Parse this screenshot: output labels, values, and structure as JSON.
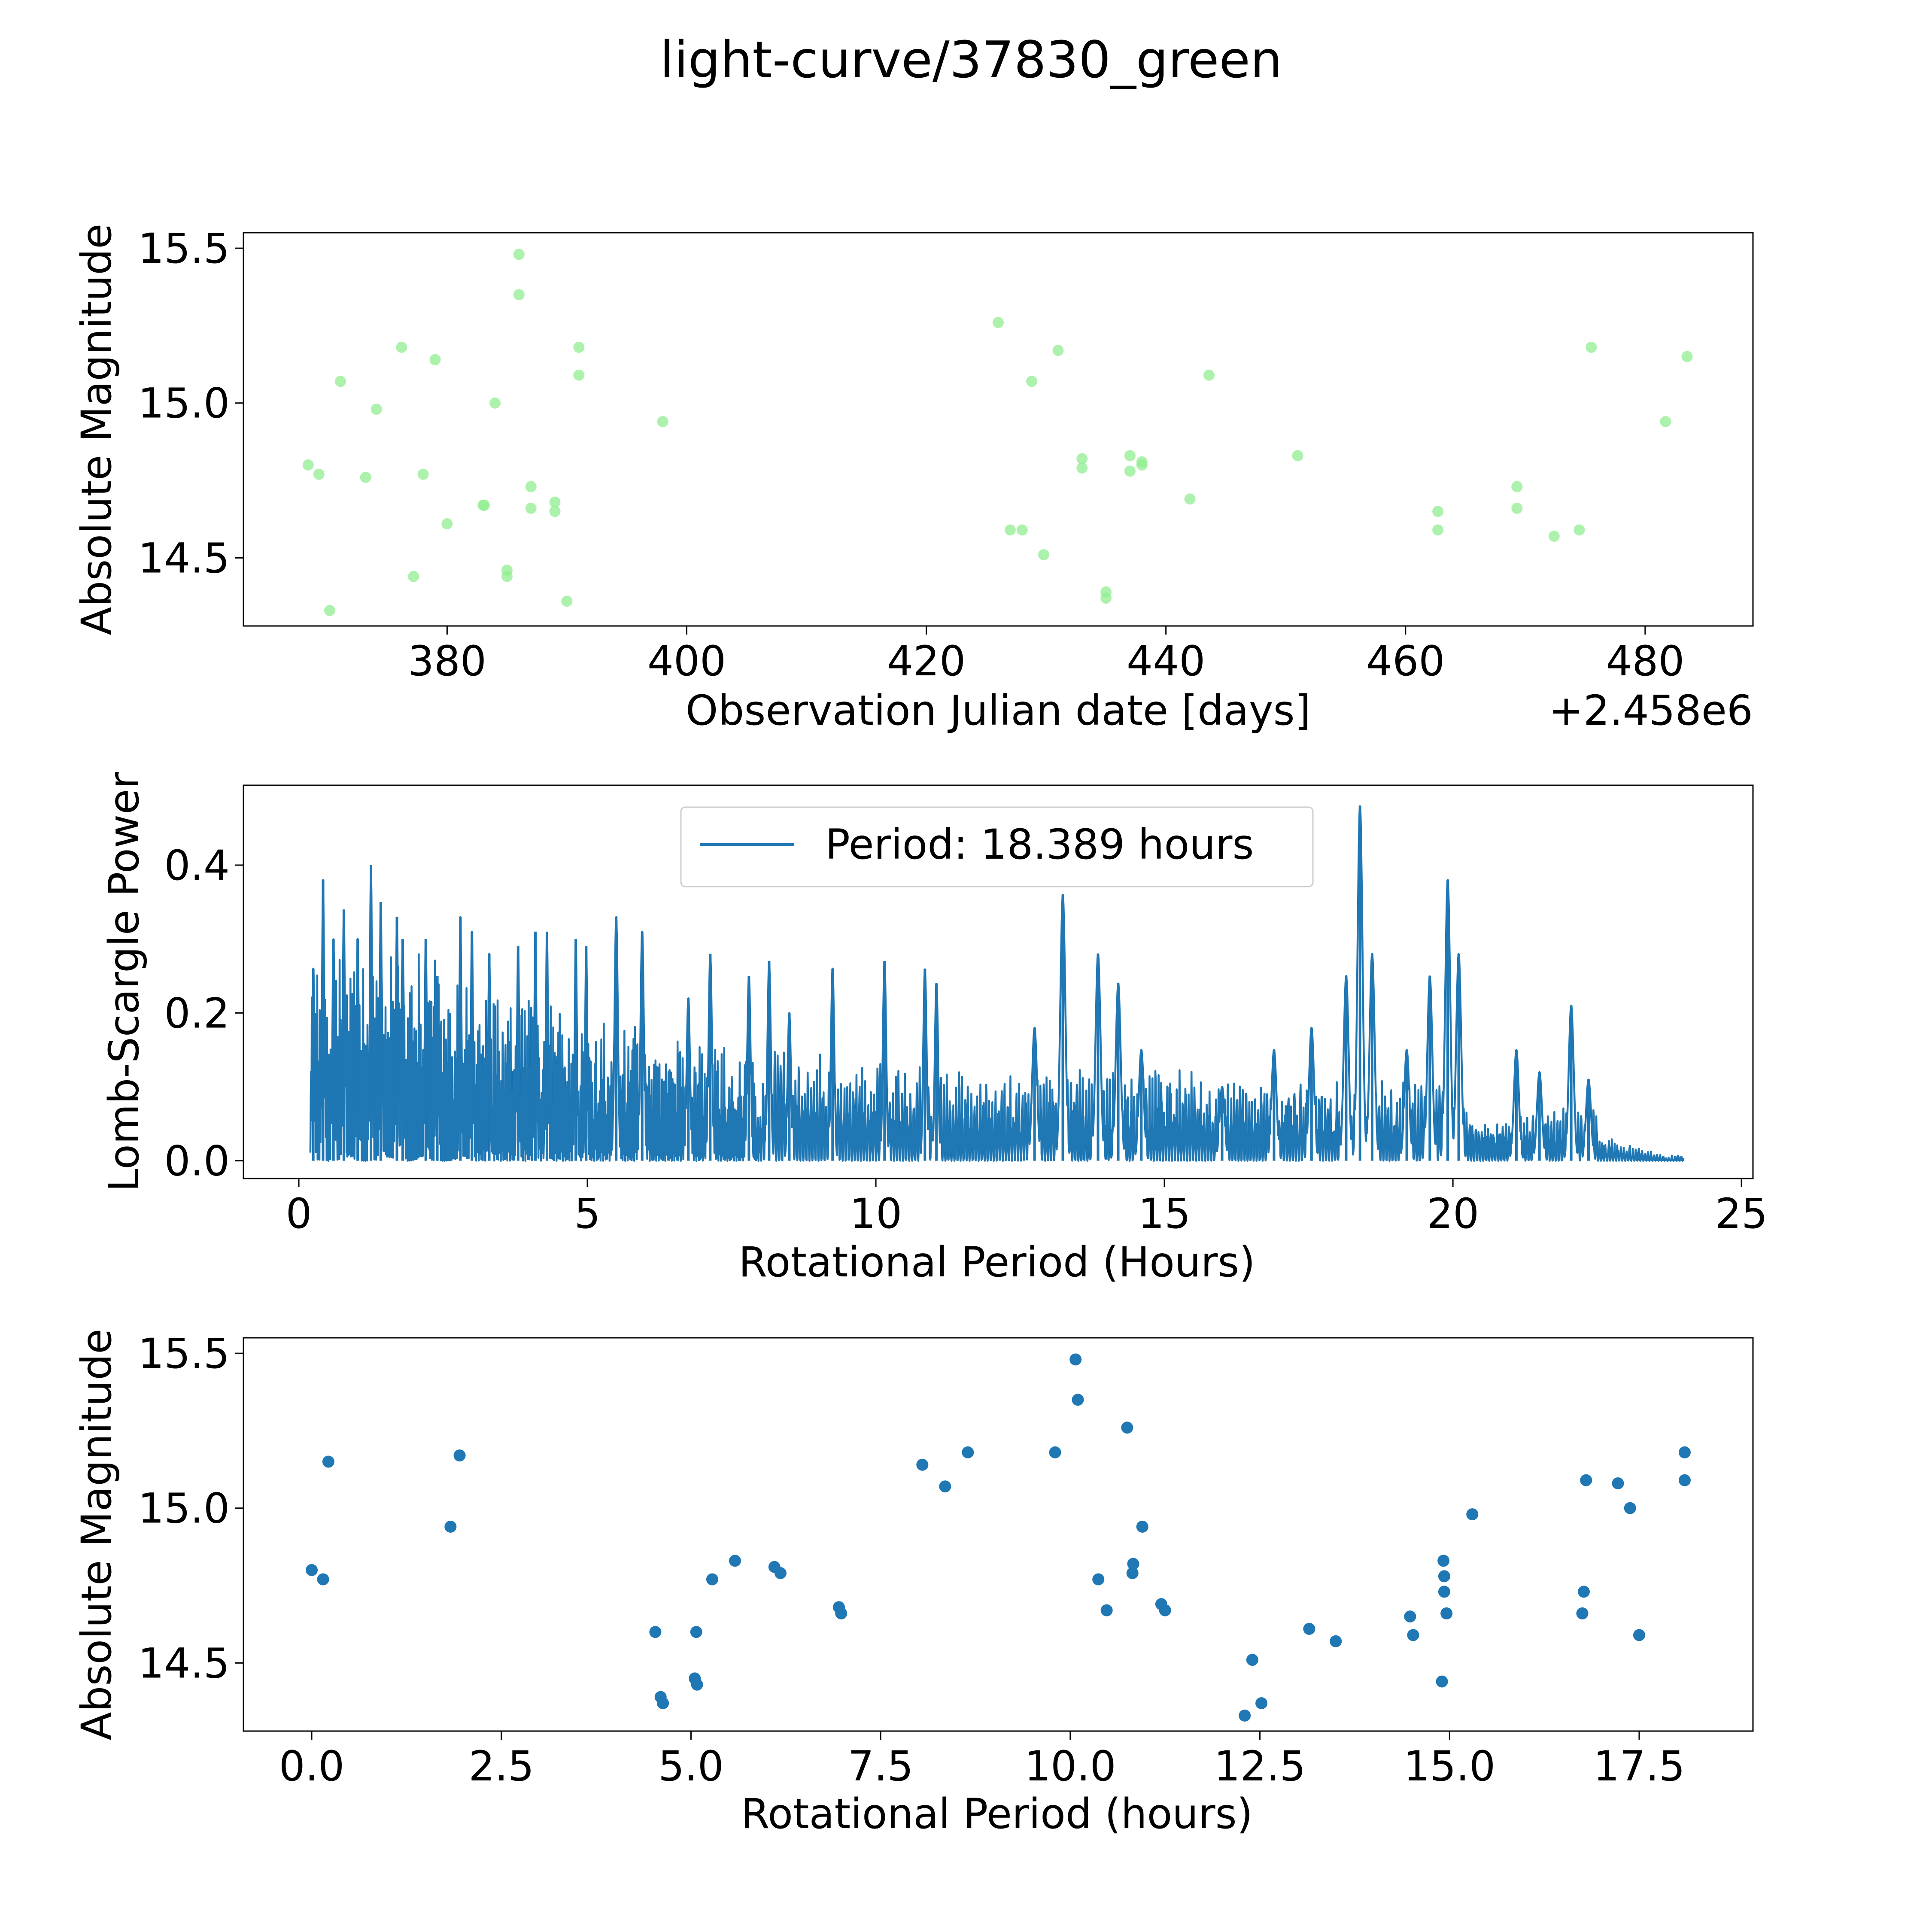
{
  "figure_title": "light-curve/37830_green",
  "colors": {
    "green_points": "#90ee90",
    "blue": "#1f77b4"
  },
  "chart_data": [
    {
      "type": "scatter",
      "title": "light-curve/37830_green",
      "xlabel": "Observation Julian date [days]",
      "ylabel": "Absolute Magnitude",
      "offset_label": "+2.458e6",
      "xlim": [
        363,
        489
      ],
      "ylim": [
        14.28,
        15.55
      ],
      "xticks": [
        380,
        400,
        420,
        440,
        460,
        480
      ],
      "xtick_labels": [
        "380",
        "400",
        "420",
        "440",
        "460",
        "480"
      ],
      "yticks": [
        14.5,
        15.0,
        15.5
      ],
      "ytick_labels": [
        "14.5",
        "15.0",
        "15.5"
      ],
      "points": [
        {
          "x": 368.4,
          "y": 14.8
        },
        {
          "x": 369.3,
          "y": 14.77
        },
        {
          "x": 370.2,
          "y": 14.33
        },
        {
          "x": 371.1,
          "y": 15.07
        },
        {
          "x": 373.2,
          "y": 14.76
        },
        {
          "x": 374.1,
          "y": 14.98
        },
        {
          "x": 376.2,
          "y": 15.18
        },
        {
          "x": 377.2,
          "y": 14.44
        },
        {
          "x": 378.0,
          "y": 14.77
        },
        {
          "x": 379.0,
          "y": 15.14
        },
        {
          "x": 380.0,
          "y": 14.61
        },
        {
          "x": 383.0,
          "y": 14.67
        },
        {
          "x": 383.1,
          "y": 14.67
        },
        {
          "x": 384.0,
          "y": 15.0
        },
        {
          "x": 385.0,
          "y": 14.46
        },
        {
          "x": 385.0,
          "y": 14.44
        },
        {
          "x": 386.0,
          "y": 15.48
        },
        {
          "x": 386.0,
          "y": 15.35
        },
        {
          "x": 387.0,
          "y": 14.73
        },
        {
          "x": 387.0,
          "y": 14.66
        },
        {
          "x": 389.0,
          "y": 14.68
        },
        {
          "x": 389.0,
          "y": 14.65
        },
        {
          "x": 390.0,
          "y": 14.36
        },
        {
          "x": 391.0,
          "y": 15.18
        },
        {
          "x": 391.0,
          "y": 15.09
        },
        {
          "x": 398.0,
          "y": 14.94
        },
        {
          "x": 426.0,
          "y": 15.26
        },
        {
          "x": 427.0,
          "y": 14.59
        },
        {
          "x": 428.0,
          "y": 14.59
        },
        {
          "x": 428.8,
          "y": 15.07
        },
        {
          "x": 429.8,
          "y": 14.51
        },
        {
          "x": 431.0,
          "y": 15.17
        },
        {
          "x": 433.0,
          "y": 14.82
        },
        {
          "x": 433.0,
          "y": 14.79
        },
        {
          "x": 435.0,
          "y": 14.39
        },
        {
          "x": 435.0,
          "y": 14.37
        },
        {
          "x": 437.0,
          "y": 14.83
        },
        {
          "x": 437.0,
          "y": 14.78
        },
        {
          "x": 438.0,
          "y": 14.81
        },
        {
          "x": 438.0,
          "y": 14.8
        },
        {
          "x": 442.0,
          "y": 14.69
        },
        {
          "x": 443.6,
          "y": 15.09
        },
        {
          "x": 451.0,
          "y": 14.83
        },
        {
          "x": 462.7,
          "y": 14.65
        },
        {
          "x": 462.7,
          "y": 14.59
        },
        {
          "x": 469.3,
          "y": 14.73
        },
        {
          "x": 469.3,
          "y": 14.66
        },
        {
          "x": 472.4,
          "y": 14.57
        },
        {
          "x": 474.5,
          "y": 14.59
        },
        {
          "x": 475.5,
          "y": 15.18
        },
        {
          "x": 481.7,
          "y": 14.94
        },
        {
          "x": 483.5,
          "y": 15.15
        }
      ]
    },
    {
      "type": "line",
      "xlabel": "Rotational Period (Hours)",
      "ylabel": "Lomb-Scargle Power",
      "legend": "Period: 18.389 hours",
      "legend_position": "top-center",
      "xlim": [
        -0.96,
        25.2
      ],
      "ylim": [
        -0.024,
        0.508
      ],
      "xticks": [
        0,
        5,
        10,
        15,
        20,
        25
      ],
      "xtick_labels": [
        "0",
        "5",
        "10",
        "15",
        "20",
        "25"
      ],
      "yticks": [
        0.0,
        0.2,
        0.4
      ],
      "ytick_labels": [
        "0.0",
        "0.2",
        "0.4"
      ],
      "x_range": [
        0.2,
        24.0
      ],
      "peaks": [
        [
          0.25,
          0.26
        ],
        [
          0.42,
          0.38
        ],
        [
          0.6,
          0.3
        ],
        [
          0.78,
          0.34
        ],
        [
          1.02,
          0.3
        ],
        [
          1.25,
          0.4
        ],
        [
          1.42,
          0.35
        ],
        [
          1.7,
          0.33
        ],
        [
          1.8,
          0.3
        ],
        [
          2.2,
          0.3
        ],
        [
          2.4,
          0.25
        ],
        [
          2.8,
          0.33
        ],
        [
          3.0,
          0.31
        ],
        [
          3.3,
          0.28
        ],
        [
          3.8,
          0.29
        ],
        [
          4.1,
          0.31
        ],
        [
          4.3,
          0.31
        ],
        [
          4.8,
          0.3
        ],
        [
          4.98,
          0.29
        ],
        [
          5.5,
          0.33
        ],
        [
          5.95,
          0.31
        ],
        [
          6.75,
          0.22
        ],
        [
          7.13,
          0.28
        ],
        [
          7.8,
          0.25
        ],
        [
          8.15,
          0.27
        ],
        [
          8.5,
          0.2
        ],
        [
          9.25,
          0.26
        ],
        [
          10.15,
          0.27
        ],
        [
          10.85,
          0.26
        ],
        [
          11.05,
          0.24
        ],
        [
          12.75,
          0.18
        ],
        [
          13.24,
          0.36
        ],
        [
          13.85,
          0.28
        ],
        [
          14.2,
          0.24
        ],
        [
          14.6,
          0.15
        ],
        [
          16.0,
          0.1
        ],
        [
          16.9,
          0.15
        ],
        [
          17.55,
          0.18
        ],
        [
          18.15,
          0.25
        ],
        [
          18.39,
          0.48
        ],
        [
          18.6,
          0.28
        ],
        [
          19.2,
          0.15
        ],
        [
          19.6,
          0.25
        ],
        [
          19.91,
          0.38
        ],
        [
          20.1,
          0.28
        ],
        [
          21.1,
          0.15
        ],
        [
          21.5,
          0.12
        ],
        [
          22.05,
          0.21
        ],
        [
          22.35,
          0.11
        ]
      ]
    },
    {
      "type": "scatter",
      "xlabel": "Rotational Period (hours)",
      "ylabel": "Absolute Magnitude",
      "xlim": [
        -0.9,
        19.0
      ],
      "ylim": [
        14.28,
        15.55
      ],
      "xticks": [
        0.0,
        2.5,
        5.0,
        7.5,
        10.0,
        12.5,
        15.0,
        17.5
      ],
      "xtick_labels": [
        "0.0",
        "2.5",
        "5.0",
        "7.5",
        "10.0",
        "12.5",
        "15.0",
        "17.5"
      ],
      "yticks": [
        14.5,
        15.0,
        15.5
      ],
      "ytick_labels": [
        "14.5",
        "15.0",
        "15.5"
      ],
      "points": [
        {
          "x": 0.0,
          "y": 14.8
        },
        {
          "x": 0.15,
          "y": 14.77
        },
        {
          "x": 0.22,
          "y": 15.15
        },
        {
          "x": 1.83,
          "y": 14.94
        },
        {
          "x": 1.95,
          "y": 15.17
        },
        {
          "x": 4.53,
          "y": 14.6
        },
        {
          "x": 4.6,
          "y": 14.39
        },
        {
          "x": 4.63,
          "y": 14.37
        },
        {
          "x": 5.05,
          "y": 14.45
        },
        {
          "x": 5.08,
          "y": 14.43
        },
        {
          "x": 5.07,
          "y": 14.6
        },
        {
          "x": 5.28,
          "y": 14.77
        },
        {
          "x": 5.58,
          "y": 14.83
        },
        {
          "x": 6.1,
          "y": 14.81
        },
        {
          "x": 6.18,
          "y": 14.79
        },
        {
          "x": 6.95,
          "y": 14.68
        },
        {
          "x": 6.98,
          "y": 14.66
        },
        {
          "x": 8.05,
          "y": 15.14
        },
        {
          "x": 8.35,
          "y": 15.07
        },
        {
          "x": 8.65,
          "y": 15.18
        },
        {
          "x": 9.8,
          "y": 15.18
        },
        {
          "x": 10.07,
          "y": 15.48
        },
        {
          "x": 10.1,
          "y": 15.35
        },
        {
          "x": 10.37,
          "y": 14.77
        },
        {
          "x": 10.48,
          "y": 14.67
        },
        {
          "x": 10.75,
          "y": 15.26
        },
        {
          "x": 10.82,
          "y": 14.79
        },
        {
          "x": 10.83,
          "y": 14.82
        },
        {
          "x": 10.95,
          "y": 14.94
        },
        {
          "x": 11.2,
          "y": 14.69
        },
        {
          "x": 11.25,
          "y": 14.67
        },
        {
          "x": 12.3,
          "y": 14.33
        },
        {
          "x": 12.4,
          "y": 14.51
        },
        {
          "x": 12.52,
          "y": 14.37
        },
        {
          "x": 13.15,
          "y": 14.61
        },
        {
          "x": 13.5,
          "y": 14.57
        },
        {
          "x": 14.48,
          "y": 14.65
        },
        {
          "x": 14.52,
          "y": 14.59
        },
        {
          "x": 14.9,
          "y": 14.44
        },
        {
          "x": 14.92,
          "y": 14.83
        },
        {
          "x": 14.93,
          "y": 14.78
        },
        {
          "x": 14.93,
          "y": 14.73
        },
        {
          "x": 14.96,
          "y": 14.66
        },
        {
          "x": 15.3,
          "y": 14.98
        },
        {
          "x": 16.75,
          "y": 14.66
        },
        {
          "x": 16.77,
          "y": 14.73
        },
        {
          "x": 16.8,
          "y": 15.09
        },
        {
          "x": 17.22,
          "y": 15.08
        },
        {
          "x": 17.38,
          "y": 15.0
        },
        {
          "x": 17.5,
          "y": 14.59
        },
        {
          "x": 18.1,
          "y": 15.18
        },
        {
          "x": 18.1,
          "y": 15.09
        }
      ]
    }
  ]
}
